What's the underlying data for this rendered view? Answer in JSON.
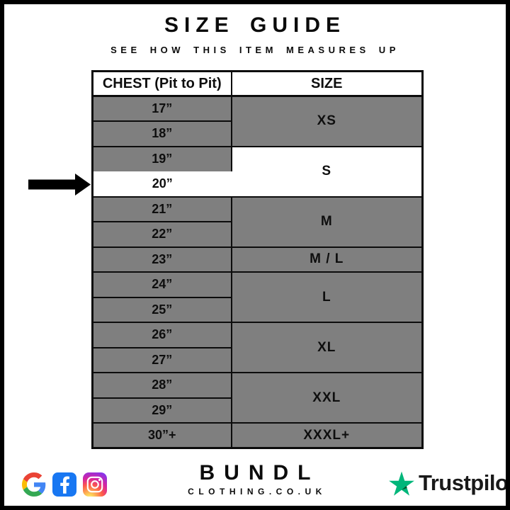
{
  "header": {
    "title": "SIZE GUIDE",
    "subtitle": "SEE HOW THIS ITEM MEASURES UP"
  },
  "table": {
    "chest_header": "CHEST (Pit to Pit)",
    "size_header": "SIZE",
    "selected_chest": "20”",
    "groups": [
      {
        "size": "XS",
        "chest": [
          "17”",
          "18”"
        ],
        "highlighted": false
      },
      {
        "size": "S",
        "chest": [
          "19”",
          "20”"
        ],
        "highlighted": true
      },
      {
        "size": "M",
        "chest": [
          "21”",
          "22”"
        ],
        "highlighted": false
      },
      {
        "size": "M / L",
        "chest": [
          "23”"
        ],
        "highlighted": false
      },
      {
        "size": "L",
        "chest": [
          "24”",
          "25”"
        ],
        "highlighted": false
      },
      {
        "size": "XL",
        "chest": [
          "26”",
          "27”"
        ],
        "highlighted": false
      },
      {
        "size": "XXL",
        "chest": [
          "28”",
          "29”"
        ],
        "highlighted": false
      },
      {
        "size": "XXXL+",
        "chest": [
          "30”+"
        ],
        "highlighted": false
      }
    ]
  },
  "indicator": {
    "icon": "arrow-right-icon",
    "points_to": "20”"
  },
  "footer": {
    "social_icons": [
      "google-icon",
      "facebook-icon",
      "instagram-icon"
    ],
    "brand_name": "BUNDL",
    "brand_tagline": "CLOTHING.CO.UK",
    "trustpilot": {
      "icon": "trustpilot-star-icon",
      "label": "Trustpilot"
    }
  },
  "colors": {
    "row_gray": "#7f7f7f",
    "highlight_white": "#ffffff",
    "ink_black": "#0c0c0c",
    "facebook_blue": "#1877f2",
    "trustpilot_green": "#00b67a",
    "trustpilot_dark_green": "#005128",
    "google_blue": "#4285f4",
    "google_red": "#ea4335",
    "google_yellow": "#fbbc05",
    "google_green": "#34a853"
  }
}
